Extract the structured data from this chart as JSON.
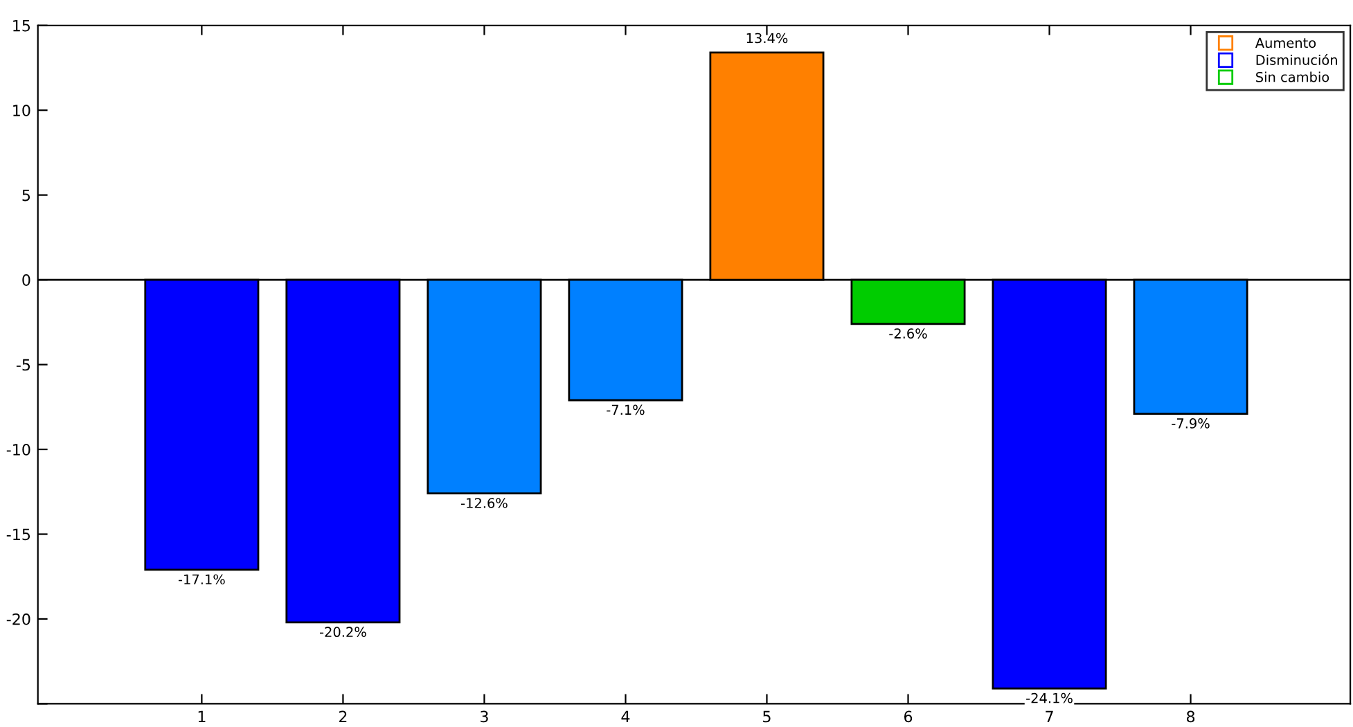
{
  "chart_data": {
    "type": "bar",
    "categories": [
      "1",
      "2",
      "3",
      "4",
      "5",
      "6",
      "7",
      "8"
    ],
    "series": [
      {
        "name": "Aumento",
        "color": "#ff8000",
        "colors": [
          null,
          null,
          null,
          null,
          "#ff8000",
          null,
          null,
          null
        ],
        "values": [
          null,
          null,
          null,
          null,
          13.4,
          null,
          null,
          null
        ],
        "value_labels": [
          null,
          null,
          null,
          null,
          "13.4%",
          null,
          null,
          null
        ]
      },
      {
        "name": "Disminución",
        "color": "#0000ff",
        "colors": [
          "#0000ff",
          "#0000ff",
          "#0080ff",
          "#0080ff",
          null,
          null,
          "#0000ff",
          "#0080ff"
        ],
        "values": [
          -17.1,
          -20.2,
          -12.6,
          -7.1,
          null,
          null,
          -24.1,
          -7.9
        ],
        "value_labels": [
          "-17.1%",
          "-20.2%",
          "-12.6%",
          "-7.1%",
          null,
          null,
          "-24.1%",
          "-7.9%"
        ]
      },
      {
        "name": "Sin cambio",
        "color": "#00cc00",
        "colors": [
          null,
          null,
          null,
          null,
          null,
          "#00cc00",
          null,
          null
        ],
        "values": [
          null,
          null,
          null,
          null,
          null,
          -2.6,
          null,
          null
        ],
        "value_labels": [
          null,
          null,
          null,
          null,
          null,
          "-2.6%",
          null,
          null
        ]
      }
    ],
    "ylim": [
      -25,
      15
    ],
    "yticks": [
      {
        "value": -25,
        "label": null
      },
      -20,
      -15,
      -10,
      -5,
      0,
      5,
      10,
      15
    ],
    "ref_lines": [
      {
        "axis": "y",
        "value": 0,
        "color": "#000000"
      }
    ],
    "grid": false,
    "legend": "top right"
  }
}
